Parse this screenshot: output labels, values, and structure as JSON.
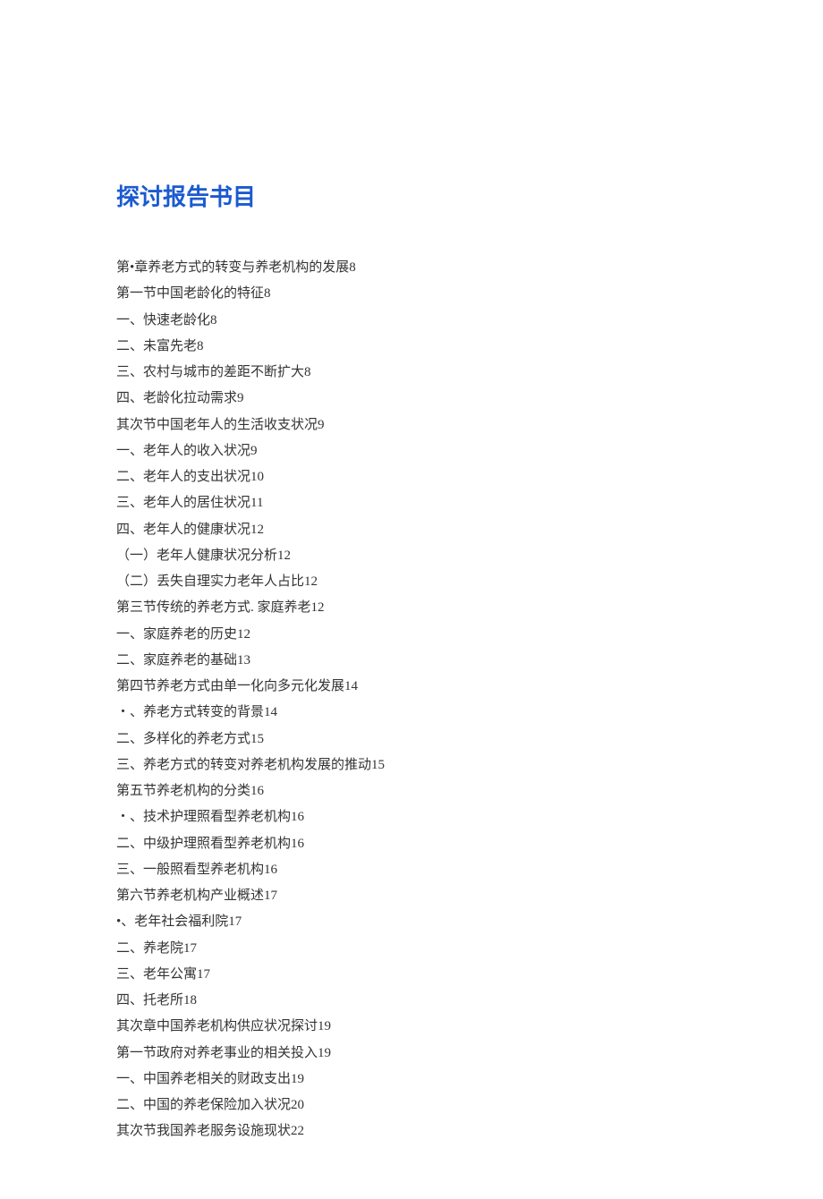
{
  "title": "探讨报告书目",
  "colors": {
    "title": "#1b5ad0",
    "text": "#333333",
    "background": "#ffffff"
  },
  "typography": {
    "title_fontsize": 26,
    "body_fontsize": 15,
    "line_height": 1.95
  },
  "toc": [
    {
      "label": "第•章养老方式的转变与养老机构的发展",
      "page": "8"
    },
    {
      "label": "第一节中国老龄化的特征",
      "page": "8"
    },
    {
      "label": "一、快速老龄化",
      "page": "8"
    },
    {
      "label": "二、未富先老",
      "page": "8"
    },
    {
      "label": "三、农村与城市的差距不断扩大",
      "page": "8"
    },
    {
      "label": "四、老龄化拉动需求",
      "page": "9"
    },
    {
      "label": "其次节中国老年人的生活收支状况",
      "page": "9"
    },
    {
      "label": "一、老年人的收入状况",
      "page": "9"
    },
    {
      "label": "二、老年人的支出状况",
      "page": "10"
    },
    {
      "label": "三、老年人的居住状况",
      "page": "11"
    },
    {
      "label": "四、老年人的健康状况",
      "page": "12"
    },
    {
      "label": "（一）老年人健康状况分析",
      "page": "12"
    },
    {
      "label": "（二）丢失自理实力老年人占比",
      "page": "12"
    },
    {
      "label": "第三节传统的养老方式. 家庭养老",
      "page": "12"
    },
    {
      "label": "一、家庭养老的历史",
      "page": "12"
    },
    {
      "label": "二、家庭养老的基础",
      "page": "13"
    },
    {
      "label": "第四节养老方式由单一化向多元化发展",
      "page": "14"
    },
    {
      "label": "・、养老方式转变的背景",
      "page": "14"
    },
    {
      "label": "二、多样化的养老方式",
      "page": "15"
    },
    {
      "label": "三、养老方式的转变对养老机构发展的推动",
      "page": "15"
    },
    {
      "label": "第五节养老机构的分类",
      "page": "16"
    },
    {
      "label": "・、技术护理照看型养老机构",
      "page": "16"
    },
    {
      "label": "二、中级护理照看型养老机构",
      "page": "16"
    },
    {
      "label": "三、一般照看型养老机构",
      "page": "16"
    },
    {
      "label": "第六节养老机构产业概述",
      "page": "17"
    },
    {
      "label": "•、老年社会福利院",
      "page": "17"
    },
    {
      "label": "二、养老院",
      "page": "17"
    },
    {
      "label": "三、老年公寓",
      "page": "17"
    },
    {
      "label": "四、托老所",
      "page": "18"
    },
    {
      "label": "其次章中国养老机构供应状况探讨",
      "page": "19"
    },
    {
      "label": "第一节政府对养老事业的相关投入",
      "page": "19"
    },
    {
      "label": "一、中国养老相关的财政支出",
      "page": "19"
    },
    {
      "label": "二、中国的养老保险加入状况",
      "page": "20"
    },
    {
      "label": "其次节我国养老服务设施现状",
      "page": "22"
    }
  ]
}
